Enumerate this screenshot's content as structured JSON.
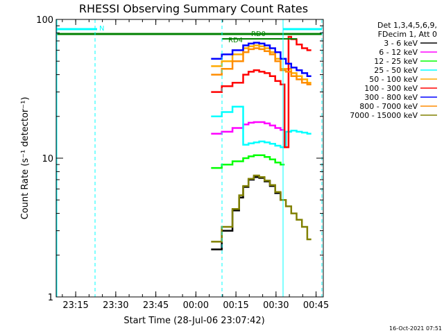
{
  "chart_data": {
    "type": "line",
    "title": "RHESSI Observing Summary Count Rates",
    "xlabel": "Start Time (28-Jul-06 23:07:42)",
    "ylabel": "Count Rate (s⁻¹ detector⁻¹)",
    "yscale": "log",
    "ylim": [
      1,
      100
    ],
    "xlim_min": [
      0,
      100
    ],
    "x_unit": "minutes after 23:07:42",
    "x_ticks": [
      {
        "label": "23:15",
        "t": 7.3
      },
      {
        "label": "23:30",
        "t": 22.3
      },
      {
        "label": "23:45",
        "t": 37.3
      },
      {
        "label": "00:00",
        "t": 52.3
      },
      {
        "label": "00:15",
        "t": 67.3
      },
      {
        "label": "00:30",
        "t": 82.3
      },
      {
        "label": "00:45",
        "t": 97.3
      }
    ],
    "y_ticks": [
      {
        "label": "1",
        "value": 1
      },
      {
        "label": "10",
        "value": 10
      },
      {
        "label": "100",
        "value": 100
      }
    ],
    "legend_header": [
      "Det 1,3,4,5,6,9,",
      "FDecim 1, Att 0"
    ],
    "legend_placement": "right",
    "series": [
      {
        "name": "3 - 6 keV",
        "color": "#000000",
        "x": [
          58,
          62,
          66,
          68.5,
          70,
          72,
          74,
          76,
          78,
          80,
          82,
          84
        ],
        "values": [
          2.2,
          3.0,
          4.2,
          5.2,
          6.2,
          7.0,
          7.3,
          7.2,
          6.8,
          6.3,
          5.6,
          5.0
        ]
      },
      {
        "name": "6 - 12 keV",
        "color": "#ff00ff",
        "x": [
          58,
          62,
          66,
          70,
          72,
          74,
          76,
          78,
          80,
          82,
          84
        ],
        "values": [
          15,
          15.5,
          16.5,
          17.5,
          18,
          18.2,
          18.2,
          17.8,
          17.2,
          16.5,
          16
        ]
      },
      {
        "name": "12 - 25 keV",
        "color": "#00ff00",
        "x": [
          58,
          62,
          66,
          70,
          72,
          74,
          76,
          78,
          80,
          82,
          84
        ],
        "values": [
          8.5,
          9,
          9.5,
          10,
          10.3,
          10.5,
          10.5,
          10.2,
          9.8,
          9.3,
          9
        ]
      },
      {
        "name": "25 - 50 keV",
        "color": "#00ffff",
        "x": [
          58,
          62,
          66,
          70,
          72,
          74,
          76,
          78,
          80,
          82,
          84,
          86,
          88,
          90,
          92,
          94
        ],
        "values": [
          20,
          21.5,
          23.5,
          12.5,
          12.8,
          13,
          13.2,
          13,
          12.7,
          12.3,
          12,
          15.5,
          15.8,
          15.5,
          15.3,
          15
        ]
      },
      {
        "name": "50 - 100 keV",
        "color": "#ffaa00",
        "x": [
          58,
          62,
          66,
          70,
          72,
          74,
          76,
          78,
          80,
          82,
          84,
          86,
          88,
          90,
          92,
          94
        ],
        "values": [
          46,
          50,
          56,
          62,
          64,
          65,
          64,
          62,
          58,
          52,
          44,
          44,
          41,
          39,
          37,
          35
        ]
      },
      {
        "name": "100 - 300 keV",
        "color": "#ff0000",
        "x": [
          58,
          62,
          66,
          70,
          72,
          74,
          76,
          78,
          80,
          82,
          84,
          85.5,
          87,
          88,
          90,
          92,
          94
        ],
        "values": [
          30,
          33,
          35,
          40,
          42,
          43,
          42,
          41,
          39,
          36,
          34,
          12,
          75,
          72,
          66,
          62,
          60
        ]
      },
      {
        "name": "300 - 800 keV",
        "color": "#0000ff",
        "x": [
          58,
          62,
          66,
          70,
          72,
          74,
          76,
          78,
          80,
          82,
          84,
          86,
          88,
          90,
          92,
          94
        ],
        "values": [
          52,
          56,
          60,
          65,
          67,
          68,
          67,
          65,
          62,
          58,
          52,
          48,
          45,
          43,
          41,
          39
        ]
      },
      {
        "name": "800 - 7000 keV",
        "color": "#ff8c00",
        "x": [
          58,
          62,
          66,
          70,
          72,
          74,
          76,
          78,
          80,
          82,
          84,
          86,
          88,
          90,
          92,
          94
        ],
        "values": [
          40,
          44,
          50,
          58,
          61,
          62,
          61,
          59,
          56,
          50,
          43,
          42,
          39,
          37,
          35,
          34
        ]
      },
      {
        "name": "7000 - 15000 keV",
        "color": "#808000",
        "x": [
          58,
          62,
          66,
          68.5,
          70,
          72,
          74,
          76,
          78,
          80,
          82,
          84,
          86,
          88,
          90,
          92,
          94
        ],
        "values": [
          2.5,
          3.2,
          4.3,
          5.4,
          6.3,
          7.1,
          7.5,
          7.3,
          6.9,
          6.4,
          5.7,
          5.0,
          4.5,
          4.0,
          3.6,
          3.2,
          2.6
        ]
      }
    ],
    "flag_annotations": [
      "N",
      "RD4",
      "RD0"
    ],
    "timestamp": "16-Oct-2021 07:51"
  }
}
